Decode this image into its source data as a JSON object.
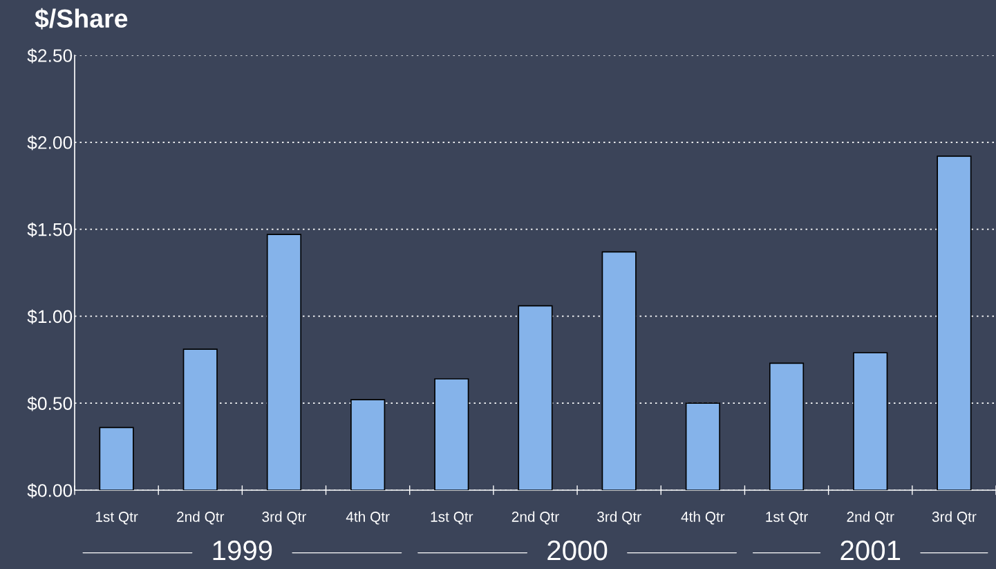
{
  "chart_data": {
    "type": "bar",
    "title": "$/Share",
    "categories": [
      "1st Qtr",
      "2nd Qtr",
      "3rd Qtr",
      "4th Qtr",
      "1st Qtr",
      "2nd Qtr",
      "3rd Qtr",
      "4th Qtr",
      "1st Qtr",
      "2nd Qtr",
      "3rd Qtr"
    ],
    "values": [
      0.36,
      0.81,
      1.47,
      0.52,
      0.64,
      1.06,
      1.37,
      0.5,
      0.73,
      0.79,
      1.92
    ],
    "color": "#85b3ea",
    "ylim": [
      0,
      2.5
    ],
    "yticks": [
      {
        "value": 0,
        "label": "$0.00"
      },
      {
        "value": 0.5,
        "label": "$0.50"
      },
      {
        "value": 1,
        "label": "$1.00"
      },
      {
        "value": 1.5,
        "label": "$1.50"
      },
      {
        "value": 2,
        "label": "$2.00"
      },
      {
        "value": 2.5,
        "label": "$2.50"
      }
    ],
    "grid": "y",
    "legend": false,
    "annotations": [
      "1999",
      "2000",
      "2001"
    ]
  }
}
